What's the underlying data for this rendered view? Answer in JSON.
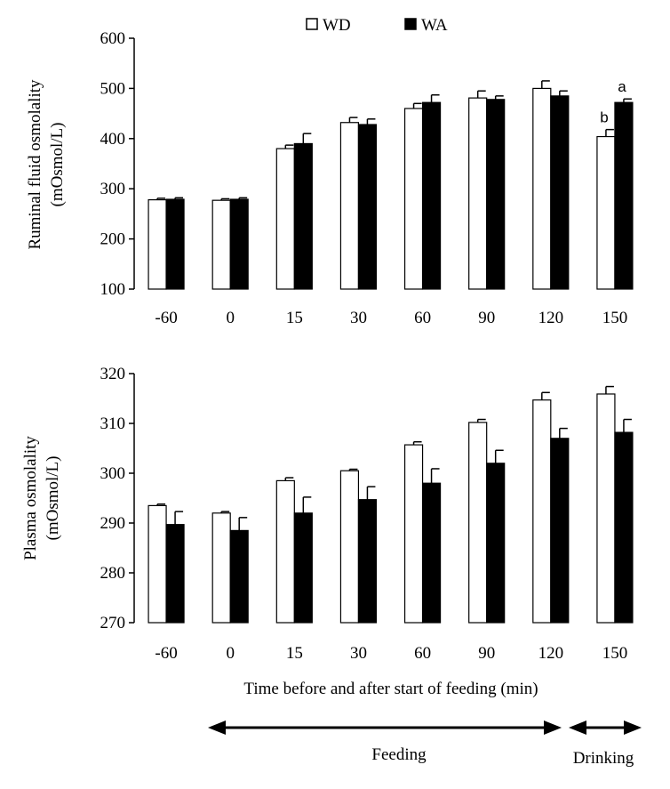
{
  "colors": {
    "wd": "#ffffff",
    "wa": "#000000",
    "axis": "#000000"
  },
  "legend": [
    {
      "name": "WD",
      "color": "#ffffff"
    },
    {
      "name": "WA",
      "color": "#000000"
    }
  ],
  "x_axis_title": "Time before and after start of feeding (min)",
  "phases": [
    {
      "label": "Feeding",
      "from_category": "0",
      "to_category": "120"
    },
    {
      "label": "Drinking",
      "from_category": "150",
      "to_category": "150"
    }
  ],
  "chart_data": [
    {
      "type": "bar",
      "ylabel_line1": "Ruminal fluid osmolality",
      "ylabel_line2": "(mOsmol/L)",
      "categories": [
        "-60",
        "0",
        "15",
        "30",
        "60",
        "90",
        "120",
        "150"
      ],
      "ylim": [
        100,
        600
      ],
      "yticks": [
        100,
        200,
        300,
        400,
        500,
        600
      ],
      "series": [
        {
          "name": "WD",
          "values": [
            278,
            277,
            380,
            432,
            460,
            481,
            500,
            404
          ],
          "errors": [
            3,
            3,
            7,
            10,
            10,
            14,
            15,
            14
          ]
        },
        {
          "name": "WA",
          "values": [
            279,
            279,
            390,
            428,
            472,
            478,
            485,
            472
          ],
          "errors": [
            3,
            3,
            20,
            11,
            15,
            7,
            10,
            7
          ]
        }
      ],
      "annotations": [
        {
          "category": "150",
          "series": "WD",
          "text": "b"
        },
        {
          "category": "150",
          "series": "WA",
          "text": "a"
        }
      ]
    },
    {
      "type": "bar",
      "ylabel_line1": "Plasma osmolality",
      "ylabel_line2": "(mOsmol/L)",
      "categories": [
        "-60",
        "0",
        "15",
        "30",
        "60",
        "90",
        "120",
        "150"
      ],
      "ylim": [
        270,
        320
      ],
      "yticks": [
        270,
        280,
        290,
        300,
        310,
        320
      ],
      "series": [
        {
          "name": "WD",
          "values": [
            293.5,
            292,
            298.5,
            300.5,
            305.7,
            310.2,
            314.7,
            315.9
          ],
          "errors": [
            0.3,
            0.3,
            0.6,
            0.3,
            0.6,
            0.6,
            1.5,
            1.5
          ]
        },
        {
          "name": "WA",
          "values": [
            289.7,
            288.5,
            292,
            294.7,
            298,
            302,
            307,
            308.2
          ],
          "errors": [
            2.6,
            2.6,
            3.2,
            2.6,
            2.9,
            2.6,
            2.0,
            2.6
          ]
        }
      ],
      "annotations": []
    }
  ]
}
